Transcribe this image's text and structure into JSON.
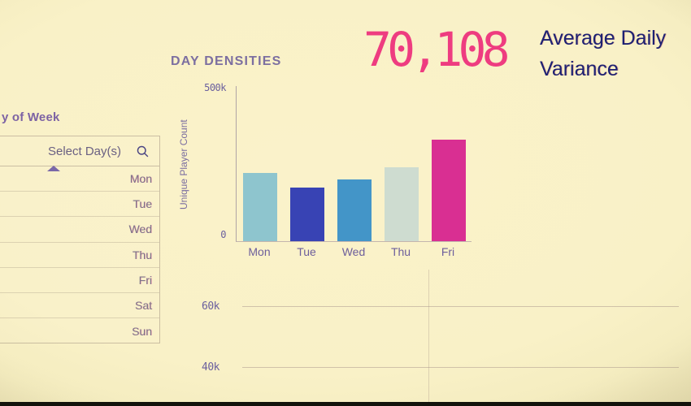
{
  "app": {
    "background_color": "#faf2ca",
    "bottom_band_color": "#13130c"
  },
  "kpi": {
    "value": "70,108",
    "value_color": "#ee3c80",
    "label_lines": [
      "Average Daily",
      "Variance"
    ],
    "label_color": "#1c2173"
  },
  "filter_panel": {
    "title": "y of Week",
    "search_placeholder": "Select Day(s)",
    "search_icon": "search-icon",
    "days": [
      "Mon",
      "Tue",
      "Wed",
      "Thu",
      "Fri",
      "Sat",
      "Sun"
    ]
  },
  "chart_data": [
    {
      "type": "bar",
      "title": "DAY DENSITIES",
      "ylabel": "Unique Player Count",
      "xlabel": "",
      "categories": [
        "Mon",
        "Tue",
        "Wed",
        "Thu",
        "Fri"
      ],
      "values": [
        220000,
        172000,
        198000,
        238000,
        325000
      ],
      "colors": [
        "#8ec5ce",
        "#3843b4",
        "#4395c8",
        "#cedcd0",
        "#d92f92"
      ],
      "ylim": [
        0,
        500000
      ],
      "ytick_labels": [
        "500k",
        "0"
      ],
      "grid": false,
      "legend": false
    },
    {
      "type": "line",
      "title": "",
      "ytick_labels": [
        "60k",
        "40k"
      ],
      "ytick_values": [
        60000,
        40000
      ],
      "series": [],
      "grid": true,
      "visibility": "partial - only 60k/40k gridlines and labels in view"
    }
  ]
}
